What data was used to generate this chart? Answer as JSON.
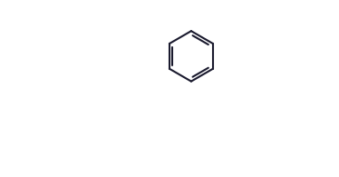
{
  "background_color": "#ffffff",
  "line_color": "#1a1a2e",
  "line_width": 1.5,
  "bond_color": "#1a1a2e"
}
